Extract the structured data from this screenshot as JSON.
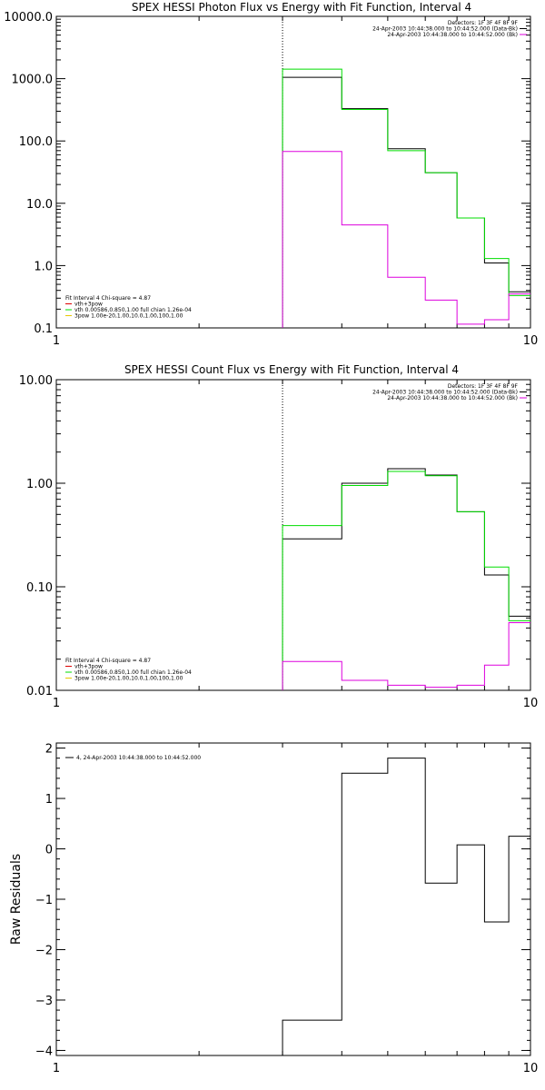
{
  "chart_data": [
    {
      "type": "line",
      "title": "SPEX HESSI Photon Flux vs Energy with Fit Function, Interval 4",
      "xscale": "log",
      "yscale": "log",
      "xlim": [
        1,
        10
      ],
      "ylim": [
        0.1,
        10000
      ],
      "xticks": [
        1,
        10
      ],
      "xtick_labels": [
        "1",
        "10"
      ],
      "yticks": [
        0.1,
        1,
        10,
        100,
        1000,
        10000
      ],
      "ytick_labels": [
        "0.1",
        "1.0",
        "10.0",
        "100.0",
        "1000.0",
        "10000.0"
      ],
      "vline_x": 3,
      "bin_edges": [
        3,
        4,
        5,
        6,
        7,
        8,
        9,
        10
      ],
      "series": [
        {
          "name": "",
          "color": "#000000",
          "values": [
            1050,
            330,
            75,
            31,
            5.8,
            1.1,
            0.38
          ]
        },
        {
          "name": "",
          "color": "#00dd00",
          "values": [
            1420,
            320,
            70,
            31,
            5.8,
            1.3,
            0.33
          ]
        },
        {
          "name": "",
          "color": "#dd00dd",
          "values": [
            68,
            4.5,
            0.65,
            0.28,
            0.115,
            0.135,
            0.35
          ]
        }
      ],
      "detector_legend": [
        {
          "text": "Detectors: 1F 3F 4F 8F 9F",
          "color": ""
        },
        {
          "text": "24-Apr-2003 10:44:38.000 to 10:44:52.000 (Data-Bk)",
          "color": "#000000"
        },
        {
          "text": "24-Apr-2003 10:44:38.000 to 10:44:52.000 (Bk)",
          "color": "#dd00dd"
        }
      ],
      "fit_legend": [
        {
          "text": "Fit Interval 4   Chi-square = 4.87",
          "color": ""
        },
        {
          "text": "vth+3pow",
          "color": "#dd0000"
        },
        {
          "text": "vth 0.00586,0.850,1.00   full chian 1.26e-04",
          "color": "#00dd00"
        },
        {
          "text": "3pow 1.00e-20,1.00,10.0,1.00,100,1.00",
          "color": "#e8c800"
        }
      ]
    },
    {
      "type": "line",
      "title": "SPEX HESSI Count Flux vs Energy with Fit Function, Interval 4",
      "ylabel": "",
      "xscale": "log",
      "yscale": "log",
      "xlim": [
        1,
        10
      ],
      "ylim": [
        0.01,
        10
      ],
      "xticks": [
        1,
        10
      ],
      "xtick_labels": [
        "1",
        "10"
      ],
      "yticks": [
        0.01,
        0.1,
        1,
        10
      ],
      "ytick_labels": [
        "0.01",
        "0.10",
        "1.00",
        "10.00"
      ],
      "vline_x": 3,
      "bin_edges": [
        3,
        4,
        5,
        6,
        7,
        8,
        9,
        10
      ],
      "series": [
        {
          "name": "",
          "color": "#000000",
          "values": [
            0.29,
            1.0,
            1.38,
            1.2,
            0.53,
            0.13,
            0.052
          ]
        },
        {
          "name": "",
          "color": "#00dd00",
          "values": [
            0.39,
            0.95,
            1.3,
            1.18,
            0.53,
            0.155,
            0.047
          ]
        },
        {
          "name": "",
          "color": "#dd00dd",
          "values": [
            0.019,
            0.0125,
            0.0112,
            0.0107,
            0.0112,
            0.0175,
            0.045
          ]
        }
      ],
      "detector_legend": [
        {
          "text": "Detectors: 1F 3F 4F 8F 9F",
          "color": ""
        },
        {
          "text": "24-Apr-2003 10:44:38.000 to 10:44:52.000 (Data-Bk)",
          "color": "#000000"
        },
        {
          "text": "24-Apr-2003 10:44:38.000 to 10:44:52.000 (Bk)",
          "color": "#dd00dd"
        }
      ],
      "fit_legend": [
        {
          "text": "Fit Interval 4   Chi-square = 4.87",
          "color": ""
        },
        {
          "text": "vth+3pow",
          "color": "#dd0000"
        },
        {
          "text": "vth 0.00586,0.850,1.00   full chian 1.26e-04",
          "color": "#00dd00"
        },
        {
          "text": "3pow 1.00e-20,1.00,10.0,1.00,100,1.00",
          "color": "#e8c800"
        }
      ]
    },
    {
      "type": "line",
      "title": "",
      "ylabel": "Raw Residuals",
      "xscale": "log",
      "yscale": "linear",
      "xlim": [
        1,
        10
      ],
      "ylim": [
        -4.1,
        2.1
      ],
      "xticks": [
        1,
        10
      ],
      "xtick_labels": [
        "1",
        "10"
      ],
      "yticks": [
        -4,
        -3,
        -2,
        -1,
        0,
        1,
        2
      ],
      "ytick_labels": [
        "−4",
        "−3",
        "−2",
        "−1",
        "0",
        "1",
        "2"
      ],
      "bin_edges": [
        3,
        4,
        5,
        6,
        7,
        8,
        9,
        10
      ],
      "series": [
        {
          "name": "4, 24-Apr-2003 10:44:38.000 to 10:44:52.000",
          "color": "#000000",
          "values": [
            -3.4,
            1.5,
            1.8,
            -0.68,
            0.08,
            -1.45,
            0.25
          ]
        }
      ],
      "legend_text": "4, 24-Apr-2003 10:44:38.000 to 10:44:52.000"
    }
  ]
}
